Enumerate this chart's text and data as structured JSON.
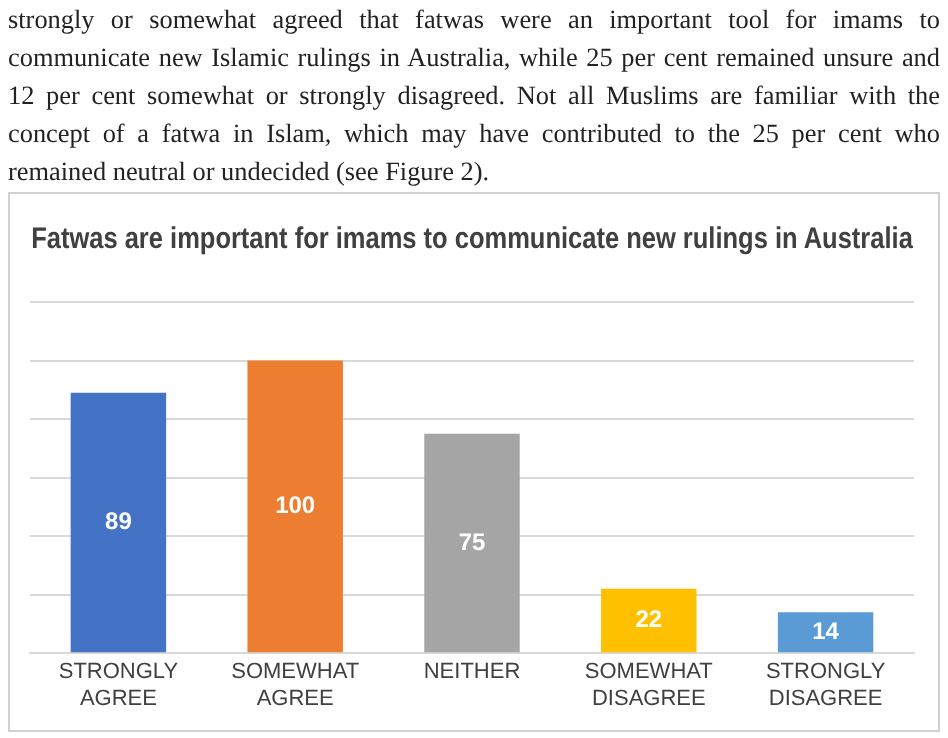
{
  "chart_data": {
    "type": "bar",
    "title": "Fatwas are important for imams to communicate new rulings in Australia",
    "categories": [
      "STRONGLY AGREE",
      "SOMEWHAT AGREE",
      "NEITHER",
      "SOMEWHAT DISAGREE",
      "STRONGLY DISAGREE"
    ],
    "values": [
      89,
      100,
      75,
      22,
      14
    ],
    "colors": [
      "#4472c4",
      "#ed7d31",
      "#a5a5a5",
      "#ffc000",
      "#5b9bd5"
    ],
    "data_labels": true,
    "grid": "y",
    "ylim": [
      0,
      120
    ],
    "yticks": [
      {
        "value": 0,
        "label": null
      },
      {
        "value": 20,
        "label": null
      },
      {
        "value": 40,
        "label": null
      },
      {
        "value": 60,
        "label": null
      },
      {
        "value": 80,
        "label": null
      },
      {
        "value": 100,
        "label": null
      },
      {
        "value": 120,
        "label": null
      }
    ],
    "tick_labels": "x",
    "annotations": [
      "strongly or somewhat agreed that fatwas were an important tool for imams to communicate new Islamic rulings in Australia, while 25 per cent remained unsure and 12 per cent somewhat or strongly disagreed. Not all Muslims are familiar with the concept of a fatwa in Islam, which may have contributed to the 25 per cent who remained neutral or undecided (see Figure 2)."
    ]
  }
}
